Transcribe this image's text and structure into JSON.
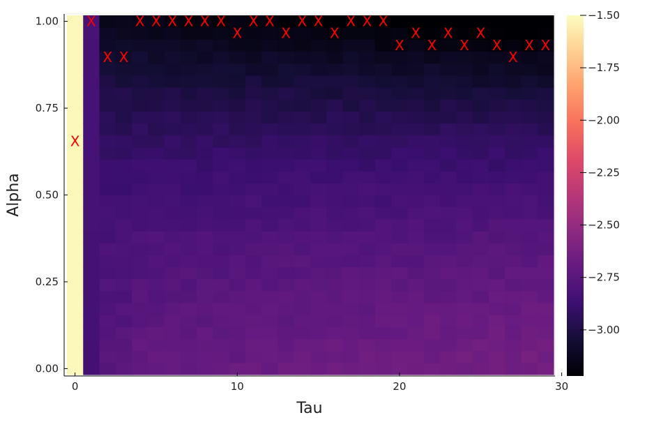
{
  "chart_data": {
    "type": "heatmap",
    "xlabel": "Tau",
    "ylabel": "Alpha",
    "x_range": [
      0,
      30
    ],
    "y_range": [
      0.0,
      1.0
    ],
    "n_tau": 30,
    "n_alpha": 30,
    "xticks": [
      0,
      10,
      20,
      30
    ],
    "xtick_labels": [
      "0",
      "10",
      "20",
      "30"
    ],
    "yticks": [
      0.0,
      0.25,
      0.5,
      0.75,
      1.0
    ],
    "ytick_labels": [
      "0.00",
      "0.25",
      "0.50",
      "0.75",
      "1.00"
    ],
    "colorbar": {
      "colormap": "magma",
      "range": [
        -3.22,
        -1.5
      ],
      "ticks": [
        -1.5,
        -1.75,
        -2.0,
        -2.25,
        -2.5,
        -2.75,
        -3.0
      ],
      "tick_labels": [
        "−1.50",
        "−1.75",
        "−2.00",
        "−2.25",
        "−2.50",
        "−2.75",
        "−3.00"
      ]
    },
    "heatmap_model": {
      "description_note": "",
      "tau0_value": -1.52,
      "tau1_value": -2.82
    },
    "markers": {
      "symbol": "X",
      "color": "#ff0000",
      "points": [
        {
          "tau": 0,
          "alpha": 0.655
        },
        {
          "tau": 1,
          "alpha": 1.0
        },
        {
          "tau": 2,
          "alpha": 0.897
        },
        {
          "tau": 3,
          "alpha": 0.897
        },
        {
          "tau": 4,
          "alpha": 1.0
        },
        {
          "tau": 5,
          "alpha": 1.0
        },
        {
          "tau": 6,
          "alpha": 1.0
        },
        {
          "tau": 7,
          "alpha": 1.0
        },
        {
          "tau": 8,
          "alpha": 1.0
        },
        {
          "tau": 9,
          "alpha": 1.0
        },
        {
          "tau": 10,
          "alpha": 0.966
        },
        {
          "tau": 11,
          "alpha": 1.0
        },
        {
          "tau": 12,
          "alpha": 1.0
        },
        {
          "tau": 13,
          "alpha": 0.966
        },
        {
          "tau": 14,
          "alpha": 1.0
        },
        {
          "tau": 15,
          "alpha": 1.0
        },
        {
          "tau": 16,
          "alpha": 0.966
        },
        {
          "tau": 17,
          "alpha": 1.0
        },
        {
          "tau": 18,
          "alpha": 1.0
        },
        {
          "tau": 19,
          "alpha": 1.0
        },
        {
          "tau": 20,
          "alpha": 0.931
        },
        {
          "tau": 21,
          "alpha": 0.966
        },
        {
          "tau": 22,
          "alpha": 0.931
        },
        {
          "tau": 23,
          "alpha": 0.966
        },
        {
          "tau": 24,
          "alpha": 0.931
        },
        {
          "tau": 25,
          "alpha": 0.966
        },
        {
          "tau": 26,
          "alpha": 0.931
        },
        {
          "tau": 27,
          "alpha": 0.897
        },
        {
          "tau": 28,
          "alpha": 0.931
        },
        {
          "tau": 29,
          "alpha": 0.931
        }
      ]
    }
  }
}
